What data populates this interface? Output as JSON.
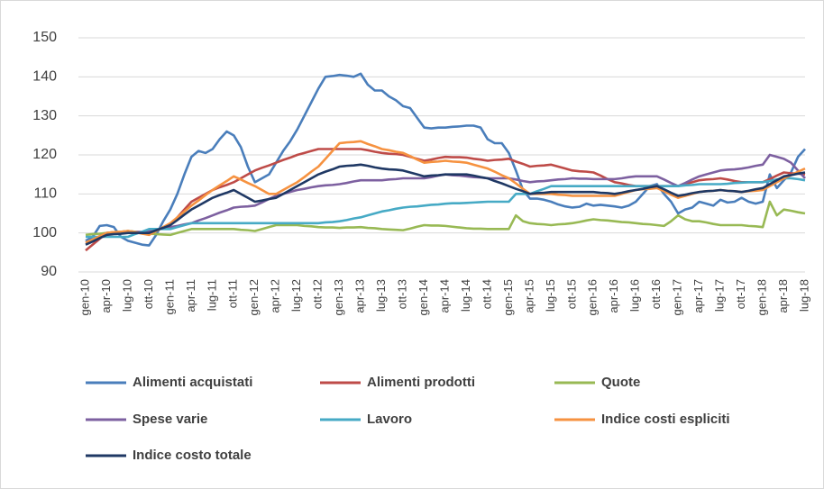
{
  "chart_data": {
    "type": "line",
    "categories": [
      "gen-10",
      null,
      null,
      "apr-10",
      null,
      null,
      "lug-10",
      null,
      null,
      "ott-10",
      null,
      null,
      "gen-11",
      null,
      null,
      "apr-11",
      null,
      null,
      "lug-11",
      null,
      null,
      "ott-11",
      null,
      null,
      "gen-12",
      null,
      null,
      "apr-12",
      null,
      null,
      "lug-12",
      null,
      null,
      "ott-12",
      null,
      null,
      "gen-13",
      null,
      null,
      "apr-13",
      null,
      null,
      "lug-13",
      null,
      null,
      "ott-13",
      null,
      null,
      "gen-14",
      null,
      null,
      "apr-14",
      null,
      null,
      "lug-14",
      null,
      null,
      "ott-14",
      null,
      null,
      "gen-15",
      null,
      null,
      "apr-15",
      null,
      null,
      "lug-15",
      null,
      null,
      "ott-15",
      null,
      null,
      "gen-16",
      null,
      null,
      "apr-16",
      null,
      null,
      "lug-16",
      null,
      null,
      "ott-16",
      null,
      null,
      "gen-17",
      null,
      null,
      "apr-17",
      null,
      null,
      "lug-17",
      null,
      null,
      "ott-17",
      null,
      null,
      "gen-18",
      null,
      null,
      "apr-18",
      null,
      null,
      "lug-18"
    ],
    "ylim": [
      90,
      150
    ],
    "yticks": [
      90,
      100,
      110,
      120,
      130,
      140,
      150
    ],
    "grid": true,
    "legend": "bottom",
    "series": [
      {
        "name": "Alimenti acquistati",
        "color": "#4a7ebb",
        "values": [
          98,
          99,
          101.8,
          102,
          101.5,
          99,
          98,
          97.5,
          97,
          96.8,
          99.5,
          103,
          106,
          110,
          115,
          119.5,
          121,
          120.5,
          121.5,
          124,
          126,
          125,
          122,
          117,
          113,
          114,
          115,
          118,
          121,
          123.5,
          126.5,
          130,
          133.5,
          137,
          140,
          140.2,
          140.5,
          140.3,
          140,
          140.8,
          138,
          136.5,
          136.5,
          135,
          134,
          132.5,
          132,
          129.5,
          127,
          126.8,
          127,
          127,
          127.2,
          127.3,
          127.5,
          127.5,
          127,
          124,
          123,
          123,
          120.5,
          116,
          111,
          108.8,
          108.8,
          108.5,
          108,
          107.3,
          106.8,
          106.5,
          106.7,
          107.5,
          107,
          107.2,
          107,
          106.8,
          106.5,
          107,
          108,
          110,
          112,
          112.5,
          110,
          108,
          105,
          106,
          106.5,
          108,
          107.5,
          107,
          108.5,
          107.8,
          108,
          109,
          108,
          107.5,
          108,
          115,
          111.5,
          113.5,
          115.5,
          119.5,
          121.5
        ]
      },
      {
        "name": "Alimenti prodotti",
        "color": "#be4b48",
        "values": [
          95.5,
          97,
          98.5,
          100,
          100.2,
          100.3,
          100.5,
          100.3,
          100.2,
          100,
          100.7,
          101.3,
          102,
          104,
          106,
          108,
          109,
          110,
          111,
          111.7,
          112.3,
          113,
          114,
          115,
          116,
          116.7,
          117.3,
          118,
          118.7,
          119.3,
          120,
          120.5,
          121,
          121.5,
          121.5,
          121.5,
          121.5,
          121.5,
          121.5,
          121.5,
          121.2,
          120.8,
          120.5,
          120.3,
          120.2,
          120,
          119.5,
          119,
          118.5,
          118.8,
          119.2,
          119.5,
          119.4,
          119.4,
          119.3,
          119,
          118.8,
          118.5,
          118.7,
          118.8,
          119,
          118.3,
          117.7,
          117,
          117.2,
          117.3,
          117.5,
          117,
          116.5,
          116,
          115.8,
          115.7,
          115.5,
          114.7,
          113.8,
          113,
          112.7,
          112.3,
          112,
          112,
          112,
          112,
          112,
          112,
          112,
          112.5,
          113,
          113.5,
          113.7,
          113.8,
          114,
          113.7,
          113.3,
          113,
          113,
          113,
          113,
          113.8,
          114.7,
          115.5,
          115.3,
          115.2,
          115
        ]
      },
      {
        "name": "Quote",
        "color": "#98b954",
        "values": [
          99.5,
          99.7,
          99.8,
          100,
          100.2,
          100.3,
          100.5,
          100.3,
          100,
          99.8,
          99.7,
          99.6,
          99.5,
          100,
          100.5,
          101,
          101,
          101,
          101,
          101,
          101,
          101,
          100.8,
          100.7,
          100.5,
          101,
          101.5,
          102,
          102,
          102,
          102,
          101.8,
          101.7,
          101.5,
          101.4,
          101.4,
          101.3,
          101.4,
          101.4,
          101.5,
          101.3,
          101.2,
          101,
          100.9,
          100.8,
          100.7,
          101.1,
          101.6,
          102,
          101.9,
          101.9,
          101.8,
          101.6,
          101.4,
          101.2,
          101.1,
          101.1,
          101,
          101,
          101,
          101,
          104.5,
          103,
          102.5,
          102.3,
          102.2,
          102,
          102.2,
          102.3,
          102.5,
          102.8,
          103.2,
          103.5,
          103.3,
          103.2,
          103,
          102.8,
          102.7,
          102.5,
          102.3,
          102.2,
          102,
          101.8,
          103,
          104.5,
          103.5,
          103,
          103,
          102.7,
          102.3,
          102,
          102,
          102,
          102,
          101.8,
          101.7,
          101.5,
          108,
          104.5,
          106,
          105.7,
          105.3,
          105
        ]
      },
      {
        "name": "Spese varie",
        "color": "#7d60a0",
        "values": [
          97.5,
          98.3,
          99.2,
          100,
          100,
          100,
          100,
          100.2,
          100.3,
          100.5,
          100.8,
          101.2,
          101.5,
          101.8,
          102.2,
          102.5,
          103.2,
          103.8,
          104.5,
          105.2,
          105.8,
          106.5,
          106.7,
          106.8,
          107,
          107.8,
          108.7,
          109.5,
          110,
          110.5,
          111,
          111.3,
          111.7,
          112,
          112.2,
          112.3,
          112.5,
          112.8,
          113.2,
          113.5,
          113.5,
          113.5,
          113.5,
          113.7,
          113.8,
          114,
          114,
          114,
          114,
          114.3,
          114.7,
          115,
          114.8,
          114.7,
          114.5,
          114.3,
          114.2,
          114,
          114,
          114,
          114,
          113.7,
          113.3,
          113,
          113.2,
          113.3,
          113.5,
          113.7,
          113.8,
          114,
          113.9,
          113.9,
          113.8,
          113.8,
          113.8,
          113.8,
          114,
          114.3,
          114.5,
          114.5,
          114.5,
          114.5,
          113.7,
          112.8,
          112,
          112.8,
          113.7,
          114.5,
          115,
          115.5,
          116,
          116.2,
          116.3,
          116.5,
          116.8,
          117.2,
          117.5,
          120,
          119.5,
          119,
          118,
          116,
          114
        ]
      },
      {
        "name": "Lavoro",
        "color": "#46aac5",
        "values": [
          99,
          99,
          99,
          99,
          99,
          99,
          99,
          99.7,
          100.3,
          101,
          101,
          101,
          101,
          101.5,
          102,
          102.5,
          102.5,
          102.5,
          102.5,
          102.5,
          102.5,
          102.5,
          102.5,
          102.5,
          102.5,
          102.5,
          102.5,
          102.5,
          102.5,
          102.5,
          102.5,
          102.5,
          102.5,
          102.5,
          102.7,
          102.8,
          103,
          103.3,
          103.7,
          104,
          104.5,
          105,
          105.5,
          105.8,
          106.2,
          106.5,
          106.7,
          106.8,
          107,
          107.2,
          107.3,
          107.5,
          107.6,
          107.6,
          107.7,
          107.8,
          107.9,
          108,
          108,
          108,
          108,
          110,
          110,
          110,
          110.7,
          111.3,
          112,
          112,
          112,
          112,
          112,
          112,
          112,
          112,
          112,
          112,
          112,
          112,
          112,
          112,
          112,
          112,
          112,
          112,
          112,
          112.2,
          112.3,
          112.5,
          112.5,
          112.5,
          112.5,
          112.6,
          112.8,
          112.9,
          113,
          113,
          113,
          113.3,
          113.7,
          114,
          114,
          113.8,
          113.5
        ]
      },
      {
        "name": "Indice costi espliciti",
        "color": "#f69240",
        "values": [
          97.5,
          98.3,
          99.2,
          100,
          100.2,
          100.3,
          100.5,
          100.2,
          99.8,
          99.5,
          100.5,
          101.5,
          102.5,
          104,
          105.5,
          107,
          108.3,
          109.7,
          111,
          112.2,
          113.3,
          114.5,
          113.7,
          112.8,
          112,
          111,
          110,
          110,
          111,
          112,
          113,
          114.3,
          115.7,
          117,
          119,
          121,
          123,
          123.2,
          123.3,
          123.5,
          122.8,
          122.2,
          121.5,
          121.2,
          120.8,
          120.5,
          119.7,
          118.8,
          118,
          118.2,
          118.3,
          118.5,
          118.3,
          118.2,
          118,
          117.5,
          117,
          116.5,
          115.7,
          114.8,
          114,
          112.7,
          111.3,
          110,
          110,
          110,
          110,
          109.8,
          109.7,
          109.5,
          109.5,
          109.5,
          109.5,
          109.5,
          109.5,
          109.5,
          110,
          110.5,
          111,
          111.2,
          111.3,
          111.5,
          110.7,
          109.8,
          109,
          109.5,
          110,
          110.5,
          110.7,
          110.8,
          111,
          110.8,
          110.7,
          110.5,
          110.7,
          110.8,
          111,
          112,
          113,
          114,
          114.8,
          115.7,
          116.5
        ]
      },
      {
        "name": "Indice costo totale",
        "color": "#1f3864",
        "values": [
          97,
          97.8,
          98.7,
          99.5,
          99.7,
          99.8,
          100,
          100,
          100,
          100,
          100.7,
          101.3,
          102,
          103.3,
          104.7,
          106,
          107,
          108,
          109,
          109.7,
          110.3,
          111,
          110,
          109,
          108,
          108.3,
          108.7,
          109,
          110,
          111,
          112,
          113,
          114,
          115,
          115.7,
          116.3,
          117,
          117.2,
          117.3,
          117.5,
          117.2,
          116.8,
          116.5,
          116.3,
          116.2,
          116,
          115.5,
          115,
          114.5,
          114.7,
          114.8,
          115,
          115,
          115,
          115,
          114.7,
          114.3,
          114,
          113.3,
          112.7,
          112,
          111.3,
          110.7,
          110,
          110.2,
          110.3,
          110.5,
          110.5,
          110.5,
          110.5,
          110.5,
          110.5,
          110.5,
          110.3,
          110.2,
          110,
          110.3,
          110.7,
          111,
          111.3,
          111.7,
          112,
          111.2,
          110.3,
          109.5,
          109.8,
          110.2,
          110.5,
          110.7,
          110.8,
          111,
          110.8,
          110.7,
          110.5,
          110.8,
          111.2,
          111.5,
          112.5,
          113.5,
          114.5,
          114.8,
          115.2,
          115.5
        ]
      }
    ]
  }
}
